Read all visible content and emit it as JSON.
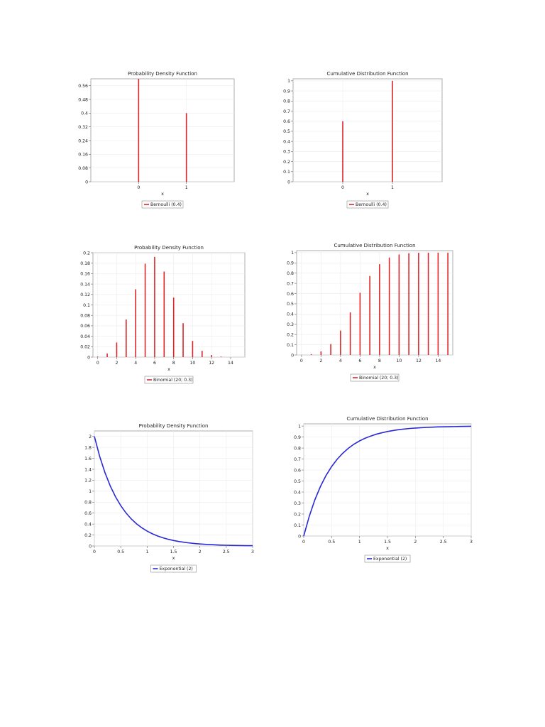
{
  "chart_data": [
    {
      "type": "bar",
      "title": "Probability Density Function",
      "xlabel": "x",
      "ylabel": "",
      "legend": "bottom",
      "grid": true,
      "xlim": [
        -1,
        2
      ],
      "ylim": [
        0,
        0.6
      ],
      "xticks": [
        0,
        1
      ],
      "yticks": [
        0,
        0.08,
        0.16,
        0.24,
        0.32,
        0.4,
        0.48,
        0.56
      ],
      "series": [
        {
          "name": "Bernoulli  (0.4)",
          "color": "#d9262a",
          "x": [
            0,
            1
          ],
          "values": [
            0.6,
            0.4
          ]
        }
      ]
    },
    {
      "type": "bar",
      "title": "Cumulative Distribution Function",
      "xlabel": "x",
      "ylabel": "",
      "legend": "bottom",
      "grid": true,
      "xlim": [
        -1,
        2
      ],
      "ylim": [
        0,
        1.02
      ],
      "xticks": [
        0,
        1
      ],
      "yticks": [
        0,
        0.1,
        0.2,
        0.3,
        0.4,
        0.5,
        0.6,
        0.7,
        0.8,
        0.9,
        1
      ],
      "series": [
        {
          "name": "Bernoulli  (0.4)",
          "color": "#d9262a",
          "x": [
            0,
            1
          ],
          "values": [
            0.6,
            1.0
          ]
        }
      ]
    },
    {
      "type": "bar",
      "title": "Probability Density Function",
      "xlabel": "x",
      "ylabel": "",
      "legend": "bottom",
      "grid": true,
      "xlim": [
        -0.5,
        15.5
      ],
      "ylim": [
        0,
        0.2
      ],
      "xticks": [
        0,
        2,
        4,
        6,
        8,
        10,
        12,
        14
      ],
      "yticks": [
        0,
        0.02,
        0.04,
        0.06,
        0.08,
        0.1,
        0.12,
        0.14,
        0.16,
        0.18,
        0.2
      ],
      "series": [
        {
          "name": "Binomial  (20; 0.3)",
          "color": "#d9262a",
          "x": [
            0,
            1,
            2,
            3,
            4,
            5,
            6,
            7,
            8,
            9,
            10,
            11,
            12,
            13
          ],
          "values": [
            0.001,
            0.007,
            0.028,
            0.072,
            0.13,
            0.179,
            0.192,
            0.164,
            0.114,
            0.065,
            0.031,
            0.012,
            0.004,
            0.001
          ]
        }
      ]
    },
    {
      "type": "bar",
      "title": "Cumulative Distribution Function",
      "xlabel": "x",
      "ylabel": "",
      "legend": "bottom",
      "grid": true,
      "xlim": [
        -0.5,
        15.5
      ],
      "ylim": [
        0,
        1.02
      ],
      "xticks": [
        0,
        2,
        4,
        6,
        8,
        10,
        12,
        14
      ],
      "yticks": [
        0,
        0.1,
        0.2,
        0.3,
        0.4,
        0.5,
        0.6,
        0.7,
        0.8,
        0.9,
        1
      ],
      "series": [
        {
          "name": "Binomial  (20; 0.3)",
          "color": "#d9262a",
          "x": [
            0,
            1,
            2,
            3,
            4,
            5,
            6,
            7,
            8,
            9,
            10,
            11,
            12,
            13,
            14,
            15
          ],
          "values": [
            0.001,
            0.008,
            0.035,
            0.107,
            0.238,
            0.416,
            0.608,
            0.772,
            0.887,
            0.952,
            0.983,
            0.995,
            0.999,
            1.0,
            1.0,
            1.0
          ]
        }
      ]
    },
    {
      "type": "line",
      "title": "Probability Density Function",
      "xlabel": "x",
      "ylabel": "",
      "legend": "bottom",
      "grid": true,
      "xlim": [
        0,
        3
      ],
      "ylim": [
        0,
        2.1
      ],
      "xticks": [
        0,
        0.5,
        1,
        1.5,
        2,
        2.5,
        3
      ],
      "yticks": [
        0,
        0.2,
        0.4,
        0.6,
        0.8,
        1,
        1.2,
        1.4,
        1.6,
        1.8,
        2
      ],
      "series": [
        {
          "name": "Exponential  (2)",
          "color": "#2a2ad6",
          "x": [
            0,
            0.1,
            0.2,
            0.3,
            0.4,
            0.5,
            0.6,
            0.7,
            0.8,
            0.9,
            1,
            1.1,
            1.2,
            1.3,
            1.4,
            1.5,
            1.6,
            1.7,
            1.8,
            1.9,
            2,
            2.1,
            2.2,
            2.3,
            2.4,
            2.5,
            2.6,
            2.7,
            2.8,
            2.9,
            3
          ],
          "values": [
            2,
            1.637,
            1.341,
            1.098,
            0.899,
            0.736,
            0.602,
            0.493,
            0.404,
            0.331,
            0.271,
            0.222,
            0.181,
            0.149,
            0.122,
            0.1,
            0.082,
            0.067,
            0.055,
            0.045,
            0.037,
            0.03,
            0.025,
            0.02,
            0.016,
            0.013,
            0.011,
            0.009,
            0.007,
            0.006,
            0.005
          ]
        }
      ]
    },
    {
      "type": "line",
      "title": "Cumulative Distribution Function",
      "xlabel": "x",
      "ylabel": "",
      "legend": "bottom",
      "grid": true,
      "xlim": [
        0,
        3
      ],
      "ylim": [
        0,
        1.02
      ],
      "xticks": [
        0,
        0.5,
        1,
        1.5,
        2,
        2.5,
        3
      ],
      "yticks": [
        0,
        0.1,
        0.2,
        0.3,
        0.4,
        0.5,
        0.6,
        0.7,
        0.8,
        0.9,
        1
      ],
      "series": [
        {
          "name": "Exponential  (2)",
          "color": "#2a2ad6",
          "x": [
            0,
            0.1,
            0.2,
            0.3,
            0.4,
            0.5,
            0.6,
            0.7,
            0.8,
            0.9,
            1,
            1.1,
            1.2,
            1.3,
            1.4,
            1.5,
            1.6,
            1.7,
            1.8,
            1.9,
            2,
            2.1,
            2.2,
            2.3,
            2.4,
            2.5,
            2.6,
            2.7,
            2.8,
            2.9,
            3
          ],
          "values": [
            0,
            0.181,
            0.33,
            0.451,
            0.551,
            0.632,
            0.699,
            0.753,
            0.798,
            0.835,
            0.865,
            0.889,
            0.909,
            0.926,
            0.939,
            0.95,
            0.959,
            0.967,
            0.973,
            0.978,
            0.982,
            0.985,
            0.988,
            0.99,
            0.992,
            0.993,
            0.994,
            0.995,
            0.996,
            0.997,
            0.998
          ]
        }
      ]
    }
  ]
}
